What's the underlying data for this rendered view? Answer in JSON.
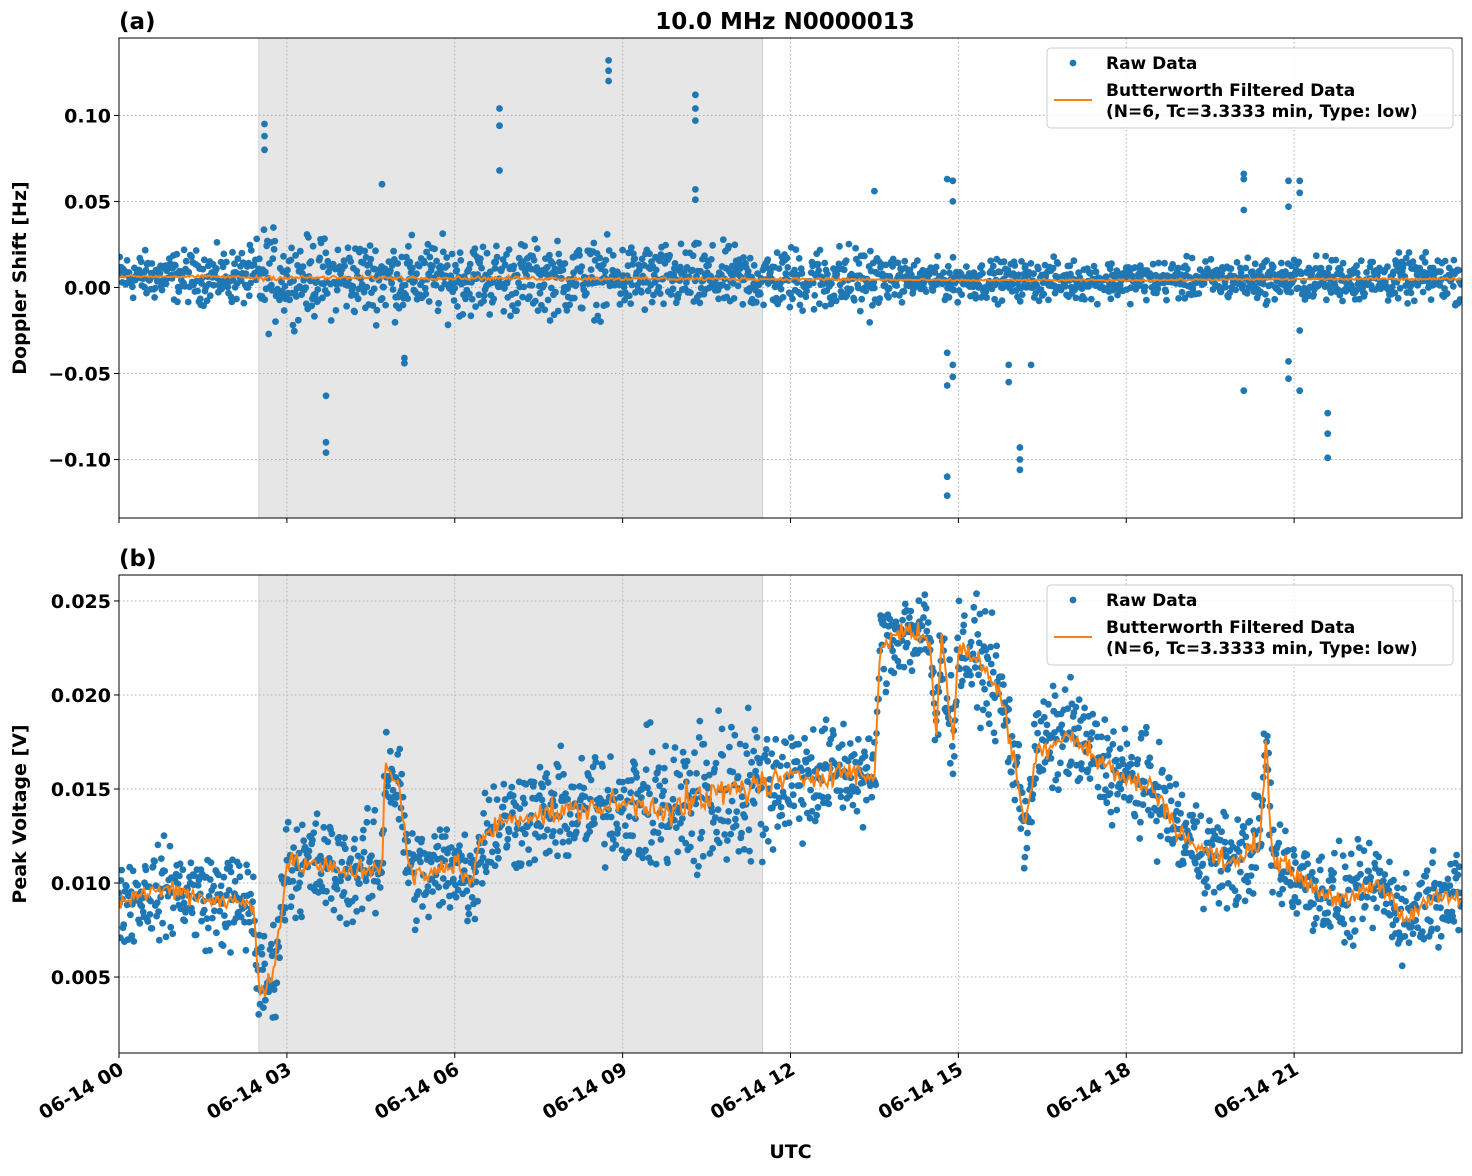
{
  "title": "10.0 MHz N0000013",
  "colors": {
    "raw": "#1f77b4",
    "filtered": "#ff7f0e",
    "shade": "#e6e6e6"
  },
  "chart_data": [
    {
      "type": "scatter+line",
      "panel_label": "(a)",
      "ylabel": "Doppler Shift [Hz]",
      "xlabel": "",
      "xlim": [
        "06-14 00:00",
        "06-15 00:00"
      ],
      "ylim": [
        -0.134,
        0.145
      ],
      "yticks": [
        -0.1,
        -0.05,
        0.0,
        0.05,
        0.1
      ],
      "ytick_labels": [
        "−0.10",
        "−0.05",
        "0.00",
        "0.05",
        "0.10"
      ],
      "grid": true,
      "shaded_span": [
        "06-14 02:30",
        "06-14 11:30"
      ],
      "legend": {
        "position": "top-right",
        "entries": [
          "Raw Data",
          "Butterworth Filtered Data",
          "(N=6, Tc=3.3333 min, Type: low)"
        ]
      },
      "filtered": [
        [
          "06-14 00:00",
          0.0065
        ],
        [
          "06-14 02:00",
          0.0062
        ],
        [
          "06-14 02:30",
          0.0055
        ],
        [
          "06-14 03:00",
          0.0058
        ],
        [
          "06-14 04:00",
          0.0056
        ],
        [
          "06-14 06:00",
          0.0055
        ],
        [
          "06-14 08:00",
          0.0052
        ],
        [
          "06-14 10:00",
          0.005
        ],
        [
          "06-14 12:00",
          0.0048
        ],
        [
          "06-14 13:30",
          0.0045
        ],
        [
          "06-14 15:00",
          0.0042
        ],
        [
          "06-14 18:00",
          0.0042
        ],
        [
          "06-14 21:00",
          0.0048
        ],
        [
          "06-15 00:00",
          0.005
        ]
      ],
      "raw_spread": [
        [
          "06-14 00:00",
          0.006
        ],
        [
          "06-14 02:20",
          0.007
        ],
        [
          "06-14 02:35",
          0.013
        ],
        [
          "06-14 03:00",
          0.01
        ],
        [
          "06-14 09:00",
          0.009
        ],
        [
          "06-14 11:30",
          0.008
        ],
        [
          "06-14 13:30",
          0.009
        ],
        [
          "06-14 13:40",
          0.005
        ],
        [
          "06-14 19:00",
          0.005
        ],
        [
          "06-15 00:00",
          0.006
        ]
      ],
      "outliers": [
        [
          "06-14 02:36",
          0.095
        ],
        [
          "06-14 02:36",
          0.088
        ],
        [
          "06-14 02:36",
          0.08
        ],
        [
          "06-14 03:42",
          -0.063
        ],
        [
          "06-14 03:42",
          -0.09
        ],
        [
          "06-14 03:42",
          -0.096
        ],
        [
          "06-14 04:42",
          0.06
        ],
        [
          "06-14 05:06",
          -0.041
        ],
        [
          "06-14 05:06",
          -0.044
        ],
        [
          "06-14 06:48",
          0.104
        ],
        [
          "06-14 06:48",
          0.094
        ],
        [
          "06-14 06:48",
          0.068
        ],
        [
          "06-14 08:45",
          0.132
        ],
        [
          "06-14 08:45",
          0.126
        ],
        [
          "06-14 08:45",
          0.12
        ],
        [
          "06-14 10:18",
          0.112
        ],
        [
          "06-14 10:18",
          0.104
        ],
        [
          "06-14 10:18",
          0.097
        ],
        [
          "06-14 10:18",
          0.057
        ],
        [
          "06-14 10:18",
          0.051
        ],
        [
          "06-14 13:30",
          0.056
        ],
        [
          "06-14 14:48",
          0.063
        ],
        [
          "06-14 14:48",
          -0.038
        ],
        [
          "06-14 14:48",
          -0.057
        ],
        [
          "06-14 14:48",
          -0.11
        ],
        [
          "06-14 14:48",
          -0.121
        ],
        [
          "06-14 14:54",
          0.062
        ],
        [
          "06-14 14:54",
          0.05
        ],
        [
          "06-14 14:54",
          -0.045
        ],
        [
          "06-14 14:54",
          -0.052
        ],
        [
          "06-14 15:54",
          -0.045
        ],
        [
          "06-14 15:54",
          -0.055
        ],
        [
          "06-14 16:06",
          -0.093
        ],
        [
          "06-14 16:06",
          -0.1
        ],
        [
          "06-14 16:06",
          -0.106
        ],
        [
          "06-14 16:18",
          -0.045
        ],
        [
          "06-14 20:06",
          0.066
        ],
        [
          "06-14 20:06",
          0.063
        ],
        [
          "06-14 20:06",
          0.045
        ],
        [
          "06-14 20:06",
          -0.06
        ],
        [
          "06-14 20:54",
          0.062
        ],
        [
          "06-14 20:54",
          0.047
        ],
        [
          "06-14 20:54",
          -0.043
        ],
        [
          "06-14 20:54",
          -0.053
        ],
        [
          "06-14 21:06",
          0.062
        ],
        [
          "06-14 21:06",
          0.055
        ],
        [
          "06-14 21:06",
          -0.025
        ],
        [
          "06-14 21:06",
          -0.06
        ],
        [
          "06-14 21:36",
          -0.073
        ],
        [
          "06-14 21:36",
          -0.085
        ],
        [
          "06-14 21:36",
          -0.099
        ]
      ]
    },
    {
      "type": "scatter+line",
      "panel_label": "(b)",
      "ylabel": "Peak Voltage [V]",
      "xlabel": "UTC",
      "xlim": [
        "06-14 00:00",
        "06-15 00:00"
      ],
      "ylim": [
        0.00096,
        0.02638
      ],
      "yticks": [
        0.005,
        0.01,
        0.015,
        0.02,
        0.025
      ],
      "ytick_labels": [
        "0.005",
        "0.010",
        "0.015",
        "0.020",
        "0.025"
      ],
      "xticks": [
        "06-14 00:00",
        "06-14 03:00",
        "06-14 06:00",
        "06-14 09:00",
        "06-14 12:00",
        "06-14 15:00",
        "06-14 18:00",
        "06-14 21:00"
      ],
      "xtick_labels": [
        "06-14 00",
        "06-14 03",
        "06-14 06",
        "06-14 09",
        "06-14 12",
        "06-14 15",
        "06-14 18",
        "06-14 21"
      ],
      "grid": true,
      "shaded_span": [
        "06-14 02:30",
        "06-14 11:30"
      ],
      "legend": {
        "position": "top-right",
        "entries": [
          "Raw Data",
          "Butterworth Filtered Data",
          "(N=6, Tc=3.3333 min, Type: low)"
        ]
      },
      "filtered": [
        [
          "06-14 00:00",
          0.009
        ],
        [
          "06-14 00:30",
          0.0095
        ],
        [
          "06-14 01:00",
          0.0097
        ],
        [
          "06-14 01:30",
          0.0092
        ],
        [
          "06-14 02:00",
          0.009
        ],
        [
          "06-14 02:24",
          0.0088
        ],
        [
          "06-14 02:30",
          0.0045
        ],
        [
          "06-14 02:45",
          0.005
        ],
        [
          "06-14 02:54",
          0.0085
        ],
        [
          "06-14 03:00",
          0.011
        ],
        [
          "06-14 03:30",
          0.011
        ],
        [
          "06-14 04:00",
          0.0105
        ],
        [
          "06-14 04:30",
          0.0108
        ],
        [
          "06-14 04:42",
          0.0108
        ],
        [
          "06-14 04:45",
          0.0165
        ],
        [
          "06-14 05:00",
          0.015
        ],
        [
          "06-14 05:12",
          0.0105
        ],
        [
          "06-14 05:30",
          0.0103
        ],
        [
          "06-14 06:00",
          0.0112
        ],
        [
          "06-14 06:18",
          0.01
        ],
        [
          "06-14 06:30",
          0.0125
        ],
        [
          "06-14 07:00",
          0.0135
        ],
        [
          "06-14 08:00",
          0.0138
        ],
        [
          "06-14 09:00",
          0.0142
        ],
        [
          "06-14 10:00",
          0.014
        ],
        [
          "06-14 11:00",
          0.015
        ],
        [
          "06-14 12:00",
          0.0155
        ],
        [
          "06-14 13:00",
          0.016
        ],
        [
          "06-14 13:30",
          0.0155
        ],
        [
          "06-14 13:36",
          0.0225
        ],
        [
          "06-14 14:00",
          0.0235
        ],
        [
          "06-14 14:30",
          0.023
        ],
        [
          "06-14 14:36",
          0.0175
        ],
        [
          "06-14 14:42",
          0.023
        ],
        [
          "06-14 14:54",
          0.0175
        ],
        [
          "06-14 15:00",
          0.0225
        ],
        [
          "06-14 15:30",
          0.0215
        ],
        [
          "06-14 15:48",
          0.0195
        ],
        [
          "06-14 16:00",
          0.0165
        ],
        [
          "06-14 16:12",
          0.013
        ],
        [
          "06-14 16:24",
          0.017
        ],
        [
          "06-14 17:00",
          0.018
        ],
        [
          "06-14 17:30",
          0.0165
        ],
        [
          "06-14 18:00",
          0.0155
        ],
        [
          "06-14 18:30",
          0.015
        ],
        [
          "06-14 19:00",
          0.0125
        ],
        [
          "06-14 19:30",
          0.0115
        ],
        [
          "06-14 20:00",
          0.011
        ],
        [
          "06-14 20:24",
          0.0125
        ],
        [
          "06-14 20:30",
          0.018
        ],
        [
          "06-14 20:36",
          0.0115
        ],
        [
          "06-14 21:00",
          0.0105
        ],
        [
          "06-14 21:30",
          0.0095
        ],
        [
          "06-14 22:00",
          0.009
        ],
        [
          "06-14 22:30",
          0.01
        ],
        [
          "06-14 23:00",
          0.008
        ],
        [
          "06-14 23:30",
          0.0095
        ],
        [
          "06-15 00:00",
          0.009
        ]
      ],
      "raw_spread": [
        [
          "06-14 00:00",
          0.001
        ],
        [
          "06-14 02:30",
          0.0012
        ],
        [
          "06-14 06:00",
          0.0012
        ],
        [
          "06-14 09:00",
          0.0013
        ],
        [
          "06-14 10:30",
          0.002
        ],
        [
          "06-14 12:00",
          0.0015
        ],
        [
          "06-14 13:30",
          0.001
        ],
        [
          "06-14 15:00",
          0.0012
        ],
        [
          "06-14 18:00",
          0.0012
        ],
        [
          "06-15 00:00",
          0.001
        ]
      ],
      "outliers": []
    }
  ]
}
